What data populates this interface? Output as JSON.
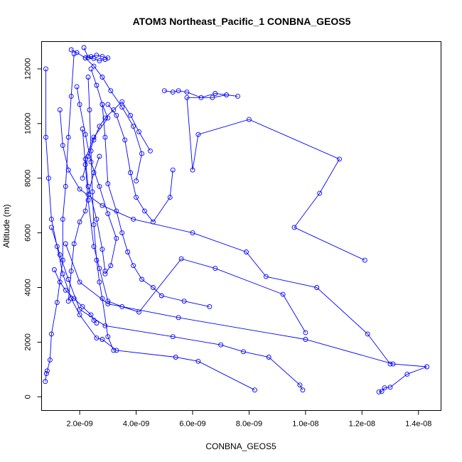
{
  "chart_data": {
    "type": "line",
    "title": "ATOM3 Northeast_Pacific_1 CONBNA_GEOS5",
    "xlabel": "CONBNA_GEOS5",
    "ylabel": "Altitude (m)",
    "xlim": [
      6.5e-10,
      1.48e-08
    ],
    "ylim": [
      -500,
      13000
    ],
    "xticks": [
      2e-09,
      4e-09,
      6e-09,
      8e-09,
      1e-08,
      1.2e-08,
      1.4e-08
    ],
    "xtick_labels": [
      "2.0e-09",
      "4.0e-09",
      "6.0e-09",
      "8.0e-09",
      "1.0e-08",
      "1.2e-08",
      "1.4e-08"
    ],
    "yticks": [
      0,
      2000,
      4000,
      6000,
      8000,
      10000,
      12000
    ],
    "ytick_labels": [
      "0",
      "2000",
      "4000",
      "6000",
      "8000",
      "10000",
      "12000"
    ],
    "grid": false,
    "color": "#0000ff",
    "series": [
      {
        "x": [
          8.2e-09,
          6.2e-09,
          5.4e-09,
          3.3e-09,
          2.8e-09,
          2.6e-09,
          2e-09,
          1.7e-09,
          1.4e-09,
          1.2e-09,
          1e-09,
          9e-10,
          8e-10,
          8e-10
        ],
        "y": [
          250,
          1300,
          1450,
          1700,
          2100,
          2150,
          3000,
          3600,
          4500,
          5500,
          6500,
          8000,
          9500,
          12000
        ]
      },
      {
        "x": [
          9.9e-09,
          9.8e-09,
          8.7e-09,
          7.8e-09,
          7e-09,
          5.3e-09,
          2.9e-09,
          2e-09,
          1.6e-09,
          1.3e-09,
          1e-09
        ],
        "y": [
          250,
          430,
          1450,
          1650,
          1900,
          2200,
          2600,
          3200,
          4300,
          5200,
          6200
        ]
      },
      {
        "x": [
          7.8e-10,
          8.2e-10,
          8.5e-10,
          9.5e-10,
          1e-09,
          1.2e-09,
          1.4e-09,
          1.4e-09,
          1.5e-09,
          1.6e-09,
          1.7e-09,
          1.8e-09
        ],
        "y": [
          560,
          850,
          950,
          1350,
          2300,
          3450,
          5000,
          6500,
          7700,
          9500,
          11000,
          12550
        ]
      },
      {
        "x": [
          1.26e-08,
          1.27e-08,
          1.28e-08,
          1.3e-08,
          1.36e-08,
          1.43e-08,
          1.31e-08,
          1e-08,
          5.5e-09,
          3e-09,
          2e-09,
          1.5e-09
        ],
        "y": [
          180,
          200,
          330,
          350,
          830,
          1100,
          1200,
          2100,
          2900,
          3400,
          4200,
          5600
        ]
      },
      {
        "x": [
          1.3e-08,
          1.22e-08,
          1.04e-08,
          8.6e-09,
          7.9e-09,
          6e-09,
          3.9e-09,
          2.8e-09,
          2e-09,
          1.6e-09,
          1.4e-09,
          1.3e-09
        ],
        "y": [
          1200,
          2300,
          4000,
          4400,
          5300,
          6000,
          6500,
          7000,
          7600,
          8300,
          9200,
          10500
        ]
      },
      {
        "x": [
          1.21e-08,
          9.6e-09,
          1.05e-08,
          1.12e-08,
          8e-09,
          6.2e-09,
          6e-09,
          5.8e-09,
          6.7e-09,
          7.2e-09,
          7.6e-09,
          6.8e-09,
          6.3e-09,
          5.8e-09,
          5.5e-09,
          5.3e-09,
          5e-09
        ],
        "y": [
          5000,
          6200,
          7450,
          8700,
          10150,
          9600,
          8300,
          10950,
          10950,
          11050,
          11000,
          11100,
          10950,
          11150,
          11200,
          11150,
          11200
        ]
      },
      {
        "x": [
          1e-08,
          9.2e-09,
          6.8e-09,
          5.6e-09,
          4.1e-09,
          3.5e-09,
          3e-09,
          2.7e-09,
          2.5e-09,
          2.3e-09,
          2.2e-09,
          2.1e-09
        ],
        "y": [
          2350,
          3750,
          4700,
          5050,
          3100,
          3300,
          3500,
          4700,
          5500,
          7200,
          8500,
          9800
        ]
      },
      {
        "x": [
          6.6e-09,
          5.7e-09,
          4.9e-09,
          4.6e-09,
          4.2e-09,
          3.9e-09,
          3.7e-09,
          3.5e-09,
          3.3e-09,
          3e-09,
          2.9e-09,
          2.8e-09
        ],
        "y": [
          3300,
          3500,
          3700,
          4000,
          4300,
          4800,
          5300,
          6000,
          6800,
          7800,
          9500,
          10700
        ]
      },
      {
        "x": [
          3.2e-09,
          3e-09,
          2.8e-09,
          2.7e-09,
          2.6e-09,
          2.5e-09,
          2.45e-09,
          2.4e-09,
          2.35e-09,
          2.3e-09
        ],
        "y": [
          1700,
          2200,
          3600,
          4200,
          5000,
          6300,
          7500,
          9000,
          10500,
          11700
        ]
      },
      {
        "x": [
          2.4e-09,
          2.6e-09,
          2.8e-09,
          3e-09,
          2.5e-09,
          2.2e-09,
          2.3e-09,
          2.6e-09,
          2.8e-09,
          2.9e-09
        ],
        "y": [
          12000,
          11400,
          10700,
          10200,
          9500,
          8700,
          7700,
          6500,
          5400,
          4600
        ]
      },
      {
        "x": [
          4.5e-09,
          4.1e-09,
          3.8e-09,
          3.5e-09,
          3.2e-09,
          2.9e-09,
          2.7e-09,
          2.5e-09,
          2.3e-09,
          2.1e-09
        ],
        "y": [
          9000,
          9700,
          10300,
          10800,
          10500,
          10200,
          9900,
          9400,
          8800,
          8000
        ]
      },
      {
        "x": [
          5.3e-09,
          5.2e-09,
          4.6e-09,
          4.3e-09,
          4e-09,
          3.8e-09,
          3.6e-09,
          3.3e-09,
          3e-09
        ],
        "y": [
          8300,
          7300,
          6400,
          6800,
          7300,
          8200,
          9400,
          10300,
          10700
        ]
      },
      {
        "x": [
          4e-09,
          4.2e-09,
          3.9e-09,
          3.5e-09,
          3.1e-09,
          2.8e-09,
          2.5e-09,
          2.2e-09,
          1.9e-09,
          1.7e-09
        ],
        "y": [
          7900,
          8900,
          9900,
          10600,
          11200,
          11700,
          12100,
          12400,
          12600,
          12700
        ]
      },
      {
        "x": [
          2.2e-09,
          2.4e-09,
          2.6e-09,
          2.8e-09,
          3e-09,
          2.9e-09,
          2.7e-09,
          2.5e-09,
          2.3e-09,
          2.15e-09
        ],
        "y": [
          12400,
          12450,
          12500,
          12450,
          12400,
          12350,
          12300,
          12380,
          12420,
          12780
        ]
      },
      {
        "x": [
          1.9e-09,
          2e-09,
          2.2e-09,
          2.4e-09,
          2.7e-09,
          3e-09,
          3.3e-09,
          3.1e-09,
          2.9e-09
        ],
        "y": [
          11350,
          10700,
          9600,
          8600,
          7700,
          6700,
          5800,
          4800,
          4500
        ]
      },
      {
        "x": [
          1.6e-09,
          1.7e-09,
          1.8e-09,
          2e-09,
          2.2e-09,
          2.3e-09,
          2.5e-09,
          2.7e-09
        ],
        "y": [
          3500,
          4600,
          5600,
          6400,
          6800,
          7400,
          8200,
          8800
        ]
      },
      {
        "x": [
          1.1e-09,
          1.3e-09,
          1.5e-09,
          1.8e-09,
          2.1e-09,
          2.4e-09,
          2.5e-09,
          2.6e-09
        ],
        "y": [
          4650,
          4200,
          3900,
          3600,
          3300,
          3000,
          2800,
          2700
        ]
      }
    ]
  }
}
